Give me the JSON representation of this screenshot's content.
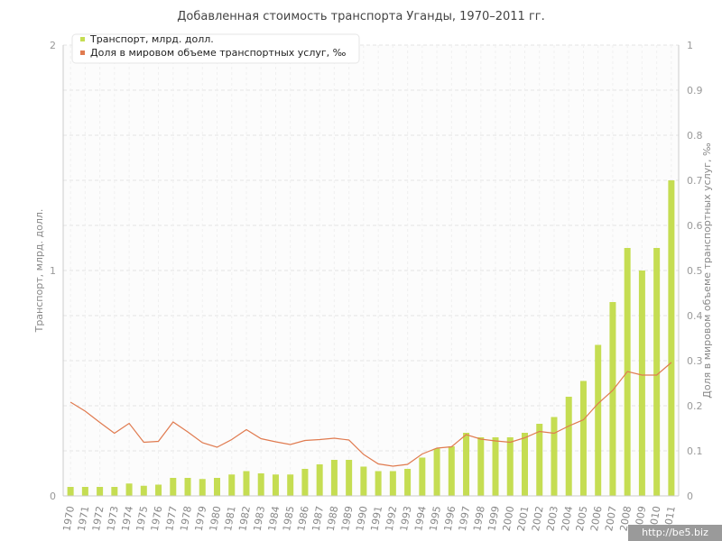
{
  "chart_data": {
    "type": "bar",
    "title": "Добавленная стоимость транспорта Уганды, 1970–2011 гг.",
    "categories": [
      "1970",
      "1971",
      "1972",
      "1973",
      "1974",
      "1975",
      "1976",
      "1977",
      "1978",
      "1979",
      "1980",
      "1981",
      "1982",
      "1983",
      "1984",
      "1985",
      "1986",
      "1987",
      "1988",
      "1989",
      "1990",
      "1991",
      "1992",
      "1993",
      "1994",
      "1995",
      "1996",
      "1997",
      "1998",
      "1999",
      "2000",
      "2001",
      "2002",
      "2003",
      "2004",
      "2005",
      "2006",
      "2007",
      "2008",
      "2009",
      "2010",
      "2011"
    ],
    "series": [
      {
        "name": "Транспорт, млрд. долл.",
        "type": "bar",
        "axis": "left",
        "color": "#c5dd52",
        "values": [
          0.04,
          0.04,
          0.04,
          0.04,
          0.055,
          0.045,
          0.05,
          0.08,
          0.08,
          0.075,
          0.08,
          0.095,
          0.11,
          0.1,
          0.095,
          0.095,
          0.12,
          0.14,
          0.16,
          0.16,
          0.13,
          0.11,
          0.11,
          0.12,
          0.17,
          0.21,
          0.22,
          0.28,
          0.26,
          0.26,
          0.26,
          0.28,
          0.32,
          0.35,
          0.44,
          0.51,
          0.67,
          0.86,
          1.1,
          1.0,
          1.1,
          1.4
        ]
      },
      {
        "name": "Доля в мировом объеме транспортных услуг, ‰",
        "type": "line",
        "axis": "right",
        "color": "#e07b50",
        "values": [
          0.208,
          0.188,
          0.163,
          0.139,
          0.161,
          0.119,
          0.121,
          0.164,
          0.142,
          0.118,
          0.108,
          0.125,
          0.147,
          0.127,
          0.12,
          0.114,
          0.123,
          0.125,
          0.128,
          0.124,
          0.092,
          0.071,
          0.066,
          0.07,
          0.093,
          0.106,
          0.109,
          0.136,
          0.126,
          0.122,
          0.119,
          0.129,
          0.143,
          0.139,
          0.155,
          0.169,
          0.205,
          0.234,
          0.276,
          0.268,
          0.268,
          0.296
        ]
      }
    ],
    "y_left": {
      "label": "Транспорт, млрд. долл.",
      "ylim": [
        0,
        2
      ],
      "ticks": [
        "0",
        "1",
        "2"
      ]
    },
    "y_right": {
      "label": "Доля в мировом объеме транспортных услуг, ‰",
      "ylim": [
        0,
        1
      ],
      "ticks": [
        "0",
        "0.1",
        "0.2",
        "0.3",
        "0.4",
        "0.5",
        "0.6",
        "0.7",
        "0.8",
        "0.9",
        "1"
      ]
    },
    "grid": true,
    "legend_position": "top-left"
  },
  "watermark": "http://be5.biz"
}
